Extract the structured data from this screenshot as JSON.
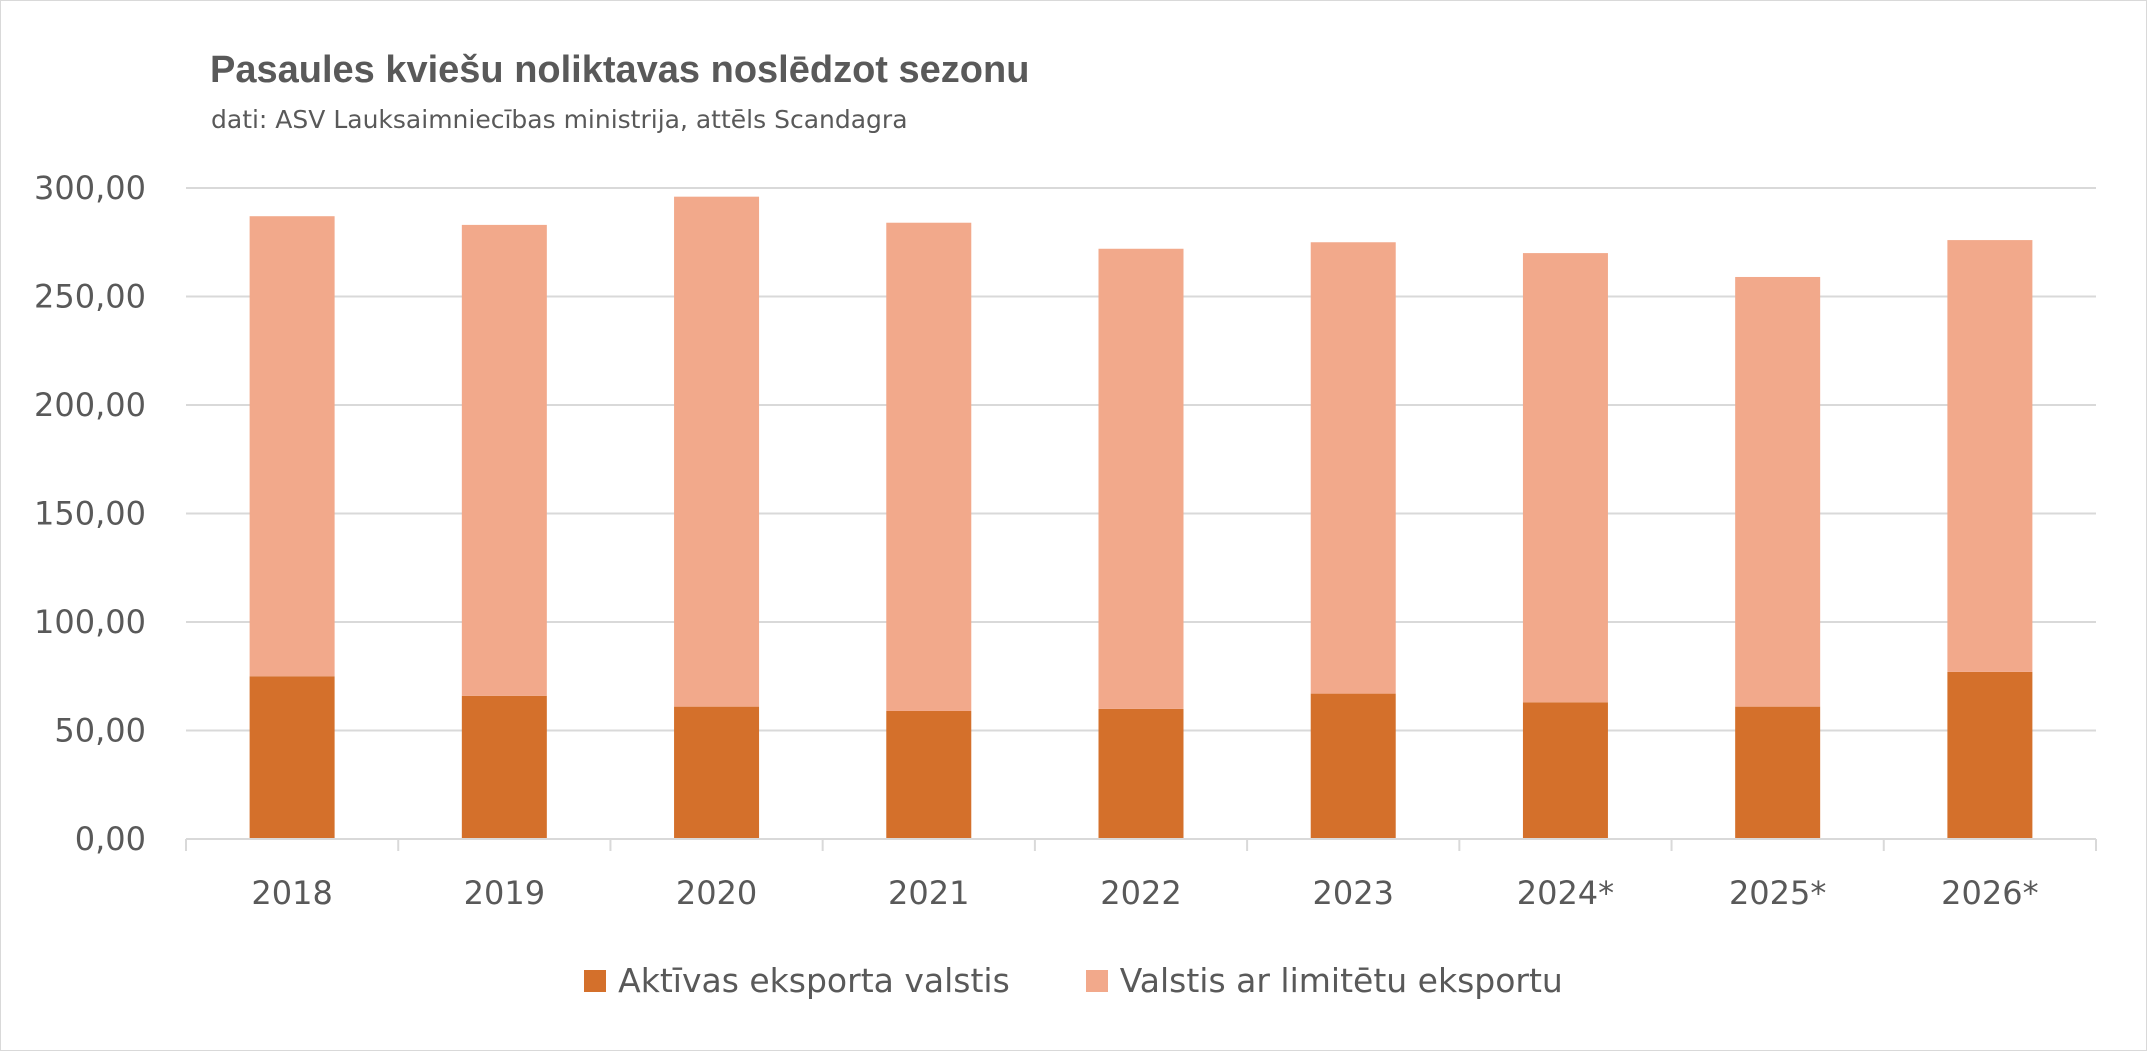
{
  "chart_data": {
    "type": "bar",
    "stacked": true,
    "title": "Pasaules kviešu noliktavas noslēdzot sezonu",
    "subtitle": "dati: ASV Lauksaimniecības ministrija, attēls Scandagra",
    "xlabel": "",
    "ylabel": "",
    "categories": [
      "2018",
      "2019",
      "2020",
      "2021",
      "2022",
      "2023",
      "2024*",
      "2025*",
      "2026*"
    ],
    "series": [
      {
        "name": "Aktīvas eksporta valstis",
        "color": "#d4702b",
        "values": [
          75,
          66,
          61,
          59,
          60,
          67,
          63,
          61,
          77
        ]
      },
      {
        "name": "Valstis ar limitētu eksportu",
        "color": "#f2a98b",
        "values": [
          212,
          217,
          235,
          225,
          212,
          208,
          207,
          198,
          199
        ]
      }
    ],
    "ylim": [
      0,
      300
    ],
    "yticks": [
      "0,00",
      "50,00",
      "100,00",
      "150,00",
      "200,00",
      "250,00",
      "300,00"
    ],
    "grid": true,
    "legend_position": "bottom"
  }
}
